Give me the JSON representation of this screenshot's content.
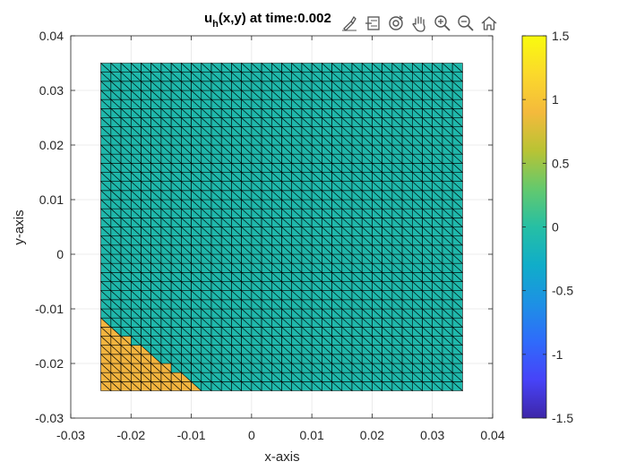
{
  "figure": {
    "title_main": "u",
    "title_sub": "h",
    "title_rest": "(x,y) at time:0.002",
    "toolbar": [
      {
        "name": "brush-icon"
      },
      {
        "name": "data-tips-icon"
      },
      {
        "name": "rotate-3d-icon"
      },
      {
        "name": "pan-hand-icon"
      },
      {
        "name": "zoom-in-icon"
      },
      {
        "name": "zoom-out-icon"
      },
      {
        "name": "home-icon"
      }
    ]
  },
  "chart_data": {
    "type": "heatmap",
    "xlabel": "x-axis",
    "ylabel": "y-axis",
    "xlim": [
      -0.03,
      0.04
    ],
    "ylim": [
      -0.03,
      0.04
    ],
    "xticks": [
      -0.03,
      -0.02,
      -0.01,
      0,
      0.01,
      0.02,
      0.03,
      0.04
    ],
    "yticks": [
      -0.03,
      -0.02,
      -0.01,
      0,
      0.01,
      0.02,
      0.03,
      0.04
    ],
    "xtick_labels": [
      "-0.03",
      "-0.02",
      "-0.01",
      "0",
      "0.01",
      "0.02",
      "0.03",
      "0.04"
    ],
    "ytick_labels": [
      "-0.03",
      "-0.02",
      "-0.01",
      "0",
      "0.01",
      "0.02",
      "0.03",
      "0.04"
    ],
    "grid": true,
    "domain": {
      "x": [
        -0.025,
        0.035
      ],
      "y": [
        -0.025,
        0.035
      ]
    },
    "mesh_divisions": 36,
    "base_value": 0,
    "region_value": 1,
    "region_boundary": {
      "x_at_bottom": -0.008,
      "y_at_left": -0.012
    },
    "colorbar": {
      "clim": [
        -1.5,
        1.5
      ],
      "ticks": [
        -1.5,
        -1,
        -0.5,
        0,
        0.5,
        1,
        1.5
      ],
      "tick_labels": [
        "-1.5",
        "-1",
        "-0.5",
        "0",
        "0.5",
        "1",
        "1.5"
      ],
      "colormap": [
        "#3e26a8",
        "#4743f8",
        "#2f6bfb",
        "#1d91e4",
        "#10adc9",
        "#26bfa4",
        "#64c96d",
        "#b9c334",
        "#f4ba3c",
        "#fbd92b",
        "#f9fb0e"
      ]
    },
    "colors": {
      "base": "#1fb8ab",
      "region": "#f2b43f",
      "edge": "#000000"
    }
  }
}
